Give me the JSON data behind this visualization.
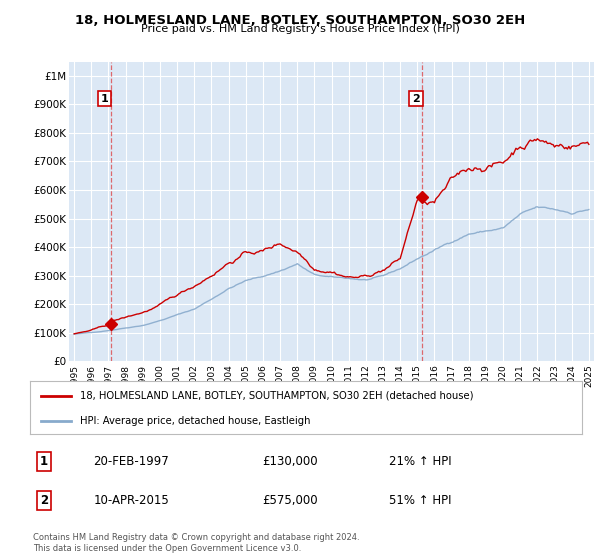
{
  "title": "18, HOLMESLAND LANE, BOTLEY, SOUTHAMPTON, SO30 2EH",
  "subtitle": "Price paid vs. HM Land Registry's House Price Index (HPI)",
  "fig_bg_color": "#ffffff",
  "plot_bg_color": "#dce8f5",
  "grid_color": "#ffffff",
  "ylim": [
    0,
    1050000
  ],
  "yticks": [
    0,
    100000,
    200000,
    300000,
    400000,
    500000,
    600000,
    700000,
    800000,
    900000,
    1000000
  ],
  "ytick_labels": [
    "£0",
    "£100K",
    "£200K",
    "£300K",
    "£400K",
    "£500K",
    "£600K",
    "£700K",
    "£800K",
    "£900K",
    "£1M"
  ],
  "xlim_start": 1994.7,
  "xlim_end": 2025.3,
  "xticks": [
    1995,
    1996,
    1997,
    1998,
    1999,
    2000,
    2001,
    2002,
    2003,
    2004,
    2005,
    2006,
    2007,
    2008,
    2009,
    2010,
    2011,
    2012,
    2013,
    2014,
    2015,
    2016,
    2017,
    2018,
    2019,
    2020,
    2021,
    2022,
    2023,
    2024,
    2025
  ],
  "sale1_date": 1997.13,
  "sale1_price": 130000,
  "sale2_date": 2015.27,
  "sale2_price": 575000,
  "line_color_property": "#cc0000",
  "line_color_hpi": "#88aacc",
  "legend_property": "18, HOLMESLAND LANE, BOTLEY, SOUTHAMPTON, SO30 2EH (detached house)",
  "legend_hpi": "HPI: Average price, detached house, Eastleigh",
  "annotation1_date": "20-FEB-1997",
  "annotation1_price": "£130,000",
  "annotation1_hpi": "21% ↑ HPI",
  "annotation2_date": "10-APR-2015",
  "annotation2_price": "£575,000",
  "annotation2_hpi": "51% ↑ HPI",
  "footnote": "Contains HM Land Registry data © Crown copyright and database right 2024.\nThis data is licensed under the Open Government Licence v3.0."
}
